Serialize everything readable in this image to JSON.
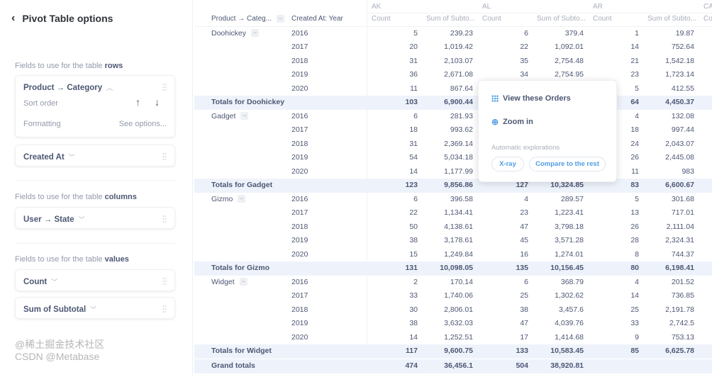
{
  "sidebar": {
    "title": "Pivot Table options",
    "rows_label": "Fields to use for the table ",
    "rows_bold": "rows",
    "row_fields": [
      {
        "label": "Product → Category",
        "sort_order": "Sort order",
        "formatting": "Formatting",
        "see_options": "See options..."
      },
      {
        "label": "Created At"
      }
    ],
    "columns_label": "Fields to use for the table ",
    "columns_bold": "columns",
    "column_fields": [
      {
        "label": "User → State"
      }
    ],
    "values_label": "Fields to use for the table ",
    "values_bold": "values",
    "value_fields": [
      {
        "label": "Count"
      },
      {
        "label": "Sum of Subtotal"
      }
    ]
  },
  "table": {
    "row_headers": [
      "Product → Categ...",
      "Created At: Year"
    ],
    "states": [
      "AK",
      "AL",
      "AR",
      "CA"
    ],
    "value_headers": [
      "Count",
      "Sum of Subto...",
      "Count",
      "Sum of Subto...",
      "Count",
      "Sum of Subto...",
      "Co"
    ],
    "groups": [
      {
        "category": "Doohickey",
        "rows": [
          {
            "year": "2016",
            "values": [
              "5",
              "239.23",
              "6",
              "379.4",
              "1",
              "19.87"
            ]
          },
          {
            "year": "2017",
            "values": [
              "20",
              "1,019.42",
              "22",
              "1,092.01",
              "14",
              "752.64"
            ]
          },
          {
            "year": "2018",
            "values": [
              "31",
              "2,103.07",
              "35",
              "2,754.48",
              "21",
              "1,542.18"
            ]
          },
          {
            "year": "2019",
            "values": [
              "36",
              "2,671.08",
              "34",
              "2,754.95",
              "23",
              "1,723.14"
            ]
          },
          {
            "year": "2020",
            "values": [
              "11",
              "867.64",
              "",
              "",
              "5",
              "412.55"
            ]
          }
        ],
        "total_label": "Totals for Doohickey",
        "totals": [
          "103",
          "6,900.44",
          "",
          "",
          "64",
          "4,450.37"
        ]
      },
      {
        "category": "Gadget",
        "rows": [
          {
            "year": "2016",
            "values": [
              "6",
              "281.93",
              "",
              "",
              "4",
              "132.08"
            ]
          },
          {
            "year": "2017",
            "values": [
              "18",
              "993.62",
              "",
              "",
              "18",
              "997.44"
            ]
          },
          {
            "year": "2018",
            "values": [
              "31",
              "2,369.14",
              "",
              "",
              "24",
              "2,043.07"
            ]
          },
          {
            "year": "2019",
            "values": [
              "54",
              "5,034.18",
              "",
              "",
              "26",
              "2,445.08"
            ]
          },
          {
            "year": "2020",
            "values": [
              "14",
              "1,177.99",
              "",
              "",
              "11",
              "983"
            ]
          }
        ],
        "total_label": "Totals for Gadget",
        "totals": [
          "123",
          "9,856.86",
          "127",
          "10,324.85",
          "83",
          "6,600.67"
        ]
      },
      {
        "category": "Gizmo",
        "rows": [
          {
            "year": "2016",
            "values": [
              "6",
              "396.58",
              "4",
              "289.57",
              "5",
              "301.68"
            ]
          },
          {
            "year": "2017",
            "values": [
              "22",
              "1,134.41",
              "23",
              "1,223.41",
              "13",
              "717.01"
            ]
          },
          {
            "year": "2018",
            "values": [
              "50",
              "4,138.61",
              "47",
              "3,798.18",
              "26",
              "2,111.04"
            ]
          },
          {
            "year": "2019",
            "values": [
              "38",
              "3,178.61",
              "45",
              "3,571.28",
              "28",
              "2,324.31"
            ]
          },
          {
            "year": "2020",
            "values": [
              "15",
              "1,249.84",
              "16",
              "1,274.01",
              "8",
              "744.37"
            ]
          }
        ],
        "total_label": "Totals for Gizmo",
        "totals": [
          "131",
          "10,098.05",
          "135",
          "10,156.45",
          "80",
          "6,198.41"
        ]
      },
      {
        "category": "Widget",
        "rows": [
          {
            "year": "2016",
            "values": [
              "2",
              "170.14",
              "6",
              "368.79",
              "4",
              "201.52"
            ]
          },
          {
            "year": "2017",
            "values": [
              "33",
              "1,740.06",
              "25",
              "1,302.62",
              "14",
              "736.85"
            ]
          },
          {
            "year": "2018",
            "values": [
              "30",
              "2,806.01",
              "38",
              "3,457.6",
              "25",
              "2,191.78"
            ]
          },
          {
            "year": "2019",
            "values": [
              "38",
              "3,632.03",
              "47",
              "4,039.76",
              "33",
              "2,742.5"
            ]
          },
          {
            "year": "2020",
            "values": [
              "14",
              "1,252.51",
              "17",
              "1,414.68",
              "9",
              "753.13"
            ]
          }
        ],
        "total_label": "Totals for Widget",
        "totals": [
          "117",
          "9,600.75",
          "133",
          "10,583.45",
          "85",
          "6,625.78"
        ]
      }
    ],
    "grand_total_label": "Grand totals",
    "grand_totals": [
      "474",
      "36,456.1",
      "504",
      "38,920.81",
      "",
      ""
    ]
  },
  "popover": {
    "view_orders": "View these Orders",
    "zoom_in": "Zoom in",
    "auto_label": "Automatic explorations",
    "xray": "X-ray",
    "compare": "Compare to the rest"
  },
  "watermark": [
    "@稀土掘金技术社区",
    "CSDN @Metabase"
  ]
}
